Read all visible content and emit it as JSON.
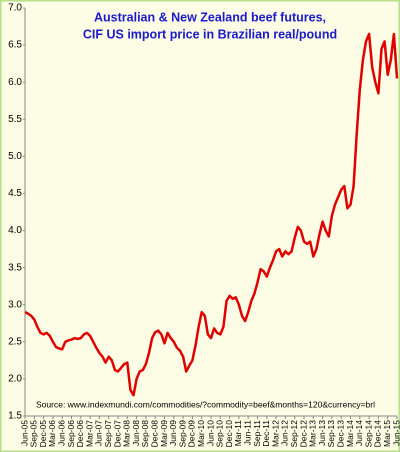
{
  "chart_data": {
    "type": "line",
    "title": "Australian & New Zealand beef futures,",
    "subtitle": "CIF US import price in Brazilian real/pound",
    "annotation": "Source: www.indexmundi.com/commodities/?commodity=beef&months=120&currency=brl",
    "color": "#e00000",
    "categories": [
      "Jun-05",
      null,
      null,
      "Sep-05",
      null,
      null,
      "Dec-05",
      null,
      null,
      "Mar-06",
      null,
      null,
      "Jun-06",
      null,
      null,
      "Sep-06",
      null,
      null,
      "Dec-06",
      null,
      null,
      "Mar-07",
      null,
      null,
      "Jun-07",
      null,
      null,
      "Sep-07",
      null,
      null,
      "Dec-07",
      null,
      null,
      "Mar-08",
      null,
      null,
      "Jun-08",
      null,
      null,
      "Sep-08",
      null,
      null,
      "Dec-08",
      null,
      null,
      "Mar-09",
      null,
      null,
      "Jun-09",
      null,
      null,
      "Sep-09",
      null,
      null,
      "Dec-09",
      null,
      null,
      "Mar-10",
      null,
      null,
      "Jun-10",
      null,
      null,
      "Sep-10",
      null,
      null,
      "Dec-10",
      null,
      null,
      "Mar-11",
      null,
      null,
      "Jun-11",
      null,
      null,
      "Sep-11",
      null,
      null,
      "Dec-11",
      null,
      null,
      "Mar-12",
      null,
      null,
      "Jun-12",
      null,
      null,
      "Sep-12",
      null,
      null,
      "Dec-12",
      null,
      null,
      "Mar-13",
      null,
      null,
      "Jun-13",
      null,
      null,
      "Sep-13",
      null,
      null,
      "Dec-13",
      null,
      null,
      "Mar-14",
      null,
      null,
      "Jun-14",
      null,
      null,
      "Sep-14",
      null,
      null,
      "Dec-14",
      null,
      null,
      "Mar-15",
      null,
      null,
      "Jun-15"
    ],
    "values": [
      2.9,
      2.88,
      2.85,
      2.8,
      2.7,
      2.62,
      2.6,
      2.62,
      2.58,
      2.5,
      2.43,
      2.41,
      2.4,
      2.5,
      2.52,
      2.53,
      2.55,
      2.54,
      2.55,
      2.6,
      2.62,
      2.58,
      2.5,
      2.42,
      2.35,
      2.3,
      2.22,
      2.3,
      2.25,
      2.12,
      2.1,
      2.15,
      2.2,
      2.22,
      1.85,
      1.78,
      2.0,
      2.1,
      2.12,
      2.2,
      2.35,
      2.55,
      2.63,
      2.65,
      2.6,
      2.48,
      2.62,
      2.55,
      2.5,
      2.42,
      2.38,
      2.3,
      2.1,
      2.18,
      2.25,
      2.45,
      2.7,
      2.9,
      2.85,
      2.6,
      2.55,
      2.68,
      2.62,
      2.6,
      2.7,
      3.05,
      3.12,
      3.08,
      3.1,
      3.0,
      2.85,
      2.78,
      2.9,
      3.05,
      3.15,
      3.3,
      3.48,
      3.45,
      3.38,
      3.5,
      3.6,
      3.72,
      3.75,
      3.65,
      3.72,
      3.68,
      3.72,
      3.9,
      4.05,
      4.0,
      3.85,
      3.82,
      3.85,
      3.65,
      3.75,
      3.95,
      4.12,
      4.0,
      3.92,
      4.2,
      4.35,
      4.45,
      4.55,
      4.6,
      4.3,
      4.35,
      4.6,
      5.3,
      5.9,
      6.3,
      6.55,
      6.65,
      6.2,
      6.0,
      5.85,
      6.45,
      6.55,
      6.1,
      6.3,
      6.65,
      6.05
    ],
    "ylim": [
      1.5,
      7.0
    ],
    "yticks": [
      1.5,
      {
        "value": 2,
        "label": "2.0"
      },
      2.5,
      {
        "value": 3,
        "label": "3.0"
      },
      3.5,
      {
        "value": 4,
        "label": "4.0"
      },
      4.5,
      {
        "value": 5,
        "label": "5.0"
      },
      5.5,
      {
        "value": 6,
        "label": "6.0"
      },
      6.5,
      {
        "value": 7,
        "label": "7.0"
      }
    ],
    "grid": false
  }
}
